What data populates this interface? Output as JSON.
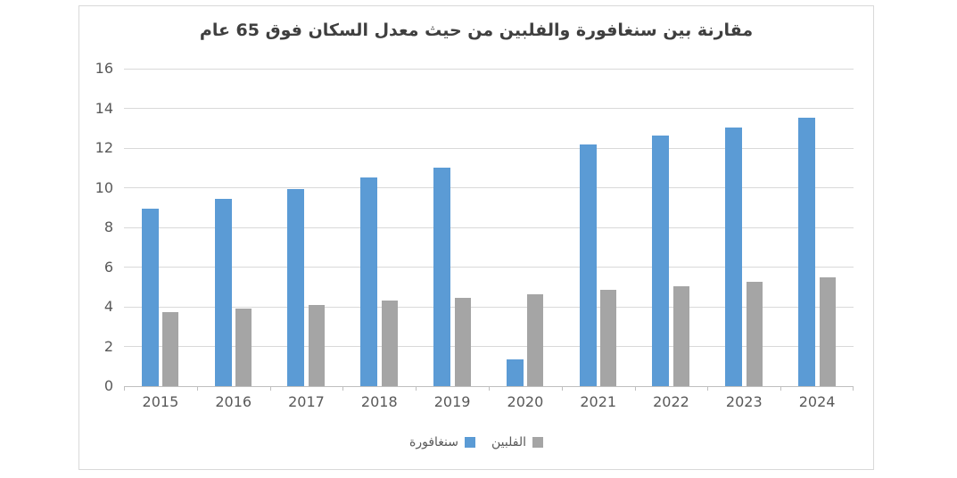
{
  "chart_data": {
    "type": "bar",
    "title": "مقارنة بين سنغافورة والفلبين من حيث معدل السكان فوق 65 عام",
    "categories": [
      "2015",
      "2016",
      "2017",
      "2018",
      "2019",
      "2020",
      "2021",
      "2022",
      "2023",
      "2024"
    ],
    "series": [
      {
        "name": "سنغافورة",
        "color": "#5b9bd5",
        "values": [
          8.95,
          9.45,
          9.95,
          10.5,
          11.0,
          1.35,
          12.2,
          12.65,
          13.05,
          13.55
        ]
      },
      {
        "name": "الفلبين",
        "color": "#a5a5a5",
        "values": [
          3.75,
          3.9,
          4.1,
          4.3,
          4.45,
          4.65,
          4.85,
          5.05,
          5.25,
          5.5
        ]
      }
    ],
    "xlabel": "",
    "ylabel": "",
    "ylim": [
      0,
      16
    ],
    "yticks": [
      0,
      2,
      4,
      6,
      8,
      10,
      12,
      14,
      16
    ],
    "grid": "horizontal",
    "legend_position": "bottom-center"
  },
  "colors": {
    "gridline": "#d9d9d9",
    "axis_line": "#bfbfbf",
    "tick_label": "#595959",
    "title_text": "#3f3f3f",
    "frame_border": "#d9d9d9",
    "background": "#ffffff",
    "series_singapore": "#5b9bd5",
    "series_philippines": "#a5a5a5"
  }
}
